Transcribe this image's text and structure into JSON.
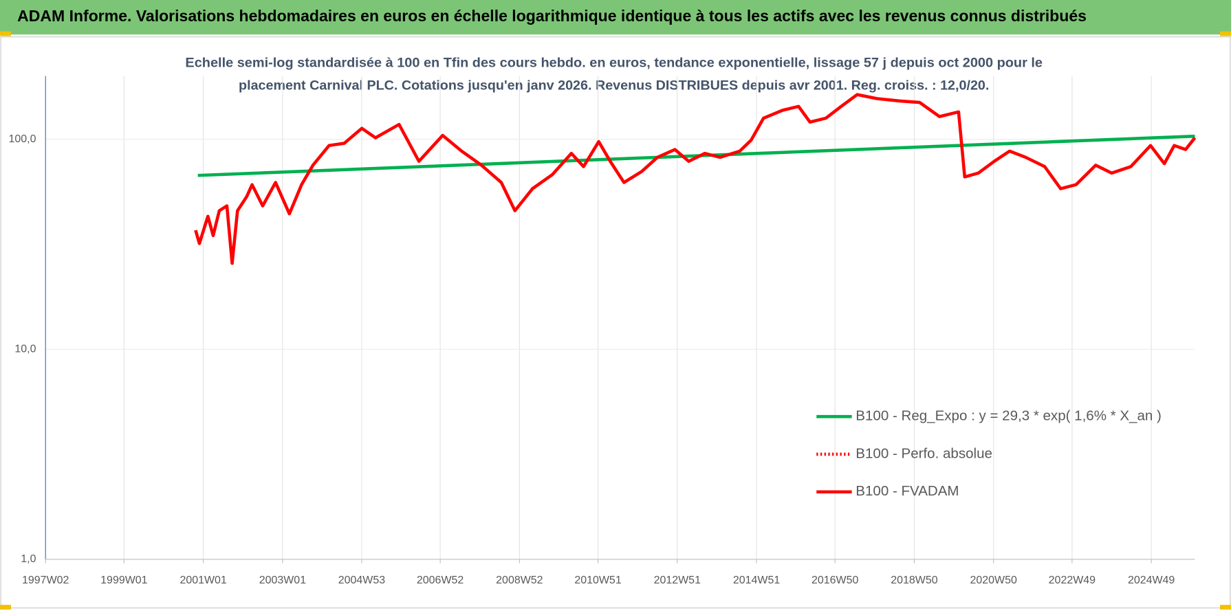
{
  "chart_data": {
    "type": "line",
    "title": "ADAM Informe. Valorisations hebdomadaires en euros en échelle logarithmique identique à tous les actifs avec les revenus connus distribués",
    "subtitle": [
      "Echelle semi-log standardisée à 100 en Tfin des cours hebdo. en euros, tendance exponentielle, lissage 57 j depuis oct 2000 pour le",
      "placement Carnival PLC. Cotations jusqu'en janv 2026. Revenus DISTRIBUES depuis avr 2001. Reg. croiss. : 12,0/20."
    ],
    "log_scale": true,
    "grid": true,
    "legend": "lower right",
    "xlim": [
      "1997W02",
      "2026W02"
    ],
    "xticks": [
      "1997W02",
      "1999W01",
      "2001W01",
      "2003W01",
      "2004W53",
      "2006W52",
      "2008W52",
      "2010W51",
      "2012W51",
      "2014W51",
      "2016W50",
      "2018W50",
      "2020W50",
      "2022W49",
      "2024W49"
    ],
    "ylim": [
      1,
      200
    ],
    "yticks": [
      {
        "value": 1,
        "label": "1,0"
      },
      {
        "value": 10,
        "label": "10,0"
      },
      {
        "value": 100,
        "label": "100,0"
      }
    ],
    "series": [
      {
        "name": "B100 - Reg_Expo : y = 29,3 * exp( 1,6% *  X_an )",
        "color": "#00b050",
        "dash": "solid",
        "x": [
          "2000W46",
          "2026W02"
        ],
        "values": [
          67.3,
          103.5
        ]
      },
      {
        "name": "B100 - Perfo. absolue",
        "color": "#ff0000",
        "dash": "dotted",
        "x": [],
        "values": []
      },
      {
        "name": "B100 - FVADAM",
        "color": "#ff0000",
        "dash": "solid",
        "x": [
          "2000W43",
          "2000W48",
          "2001W07",
          "2001W14",
          "2001W22",
          "2001W32",
          "2001W39",
          "2001W46",
          "2002W06",
          "2002W13",
          "2002W27",
          "2002W44",
          "2003W10",
          "2003W26",
          "2003W41",
          "2004W10",
          "2004W30",
          "2005W01",
          "2005W19",
          "2005W50",
          "2006W24",
          "2007W03",
          "2007W28",
          "2008W02",
          "2008W28",
          "2008W46",
          "2009W17",
          "2009W43",
          "2010W16",
          "2010W32",
          "2010W52",
          "2011W15",
          "2011W33",
          "2012W04",
          "2012W25",
          "2012W48",
          "2013W14",
          "2013W35",
          "2014W03",
          "2014W29",
          "2014W44",
          "2015W08",
          "2015W33",
          "2016W02",
          "2016W17",
          "2016W38",
          "2017W06",
          "2017W27",
          "2018W01",
          "2018W31",
          "2019W05",
          "2019W31",
          "2020W04",
          "2020W12",
          "2020W30",
          "2020W51",
          "2021W19",
          "2021W40",
          "2022W13",
          "2022W34",
          "2023W02",
          "2023W28",
          "2023W49",
          "2024W22",
          "2024W48",
          "2025W14",
          "2025W27",
          "2025W42",
          "2026W02"
        ],
        "values": [
          36.9,
          31.9,
          43,
          34.8,
          45.7,
          48.2,
          25.7,
          45.7,
          53.4,
          60.8,
          48.2,
          62.3,
          44.2,
          60.8,
          75.3,
          93.4,
          95.8,
          112.8,
          101.7,
          117.7,
          78.6,
          104.4,
          87.9,
          75.3,
          62.3,
          45.7,
          58.2,
          67.9,
          85.7,
          74.1,
          97.5,
          78.6,
          62.3,
          70.2,
          82.1,
          89.4,
          78.6,
          85.7,
          82.1,
          87.9,
          99.1,
          126,
          137.4,
          143.5,
          120.8,
          126.1,
          143.5,
          163.2,
          156.3,
          152.3,
          149.8,
          128.3,
          135.1,
          66.2,
          69.1,
          78.6,
          87.9,
          82.1,
          74.1,
          58.2,
          60.8,
          75.3,
          69.1,
          74.1,
          93.4,
          76.6,
          93.4,
          89.4,
          101.7
        ]
      }
    ]
  }
}
